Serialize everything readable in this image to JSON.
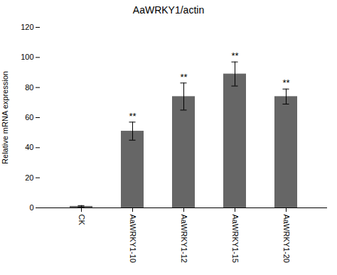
{
  "chart_data": {
    "type": "bar",
    "title": "AaWRKY1/actin",
    "ylabel": "Relative mRNA expression",
    "categories": [
      "CK",
      "AaWRKY1-10",
      "AaWRKY1-12",
      "AaWRKY1-15",
      "AaWRKY1-20"
    ],
    "values": [
      1.0,
      51.0,
      74.0,
      89.0,
      74.0
    ],
    "errors": [
      0.5,
      6.0,
      9.0,
      8.0,
      5.0
    ],
    "color": "#666666",
    "ylim": [
      0,
      120
    ],
    "yticks": [
      0,
      20,
      40,
      60,
      80,
      100,
      120
    ],
    "grid": false,
    "annotations": [
      {
        "x": "AaWRKY1-10",
        "text": "**"
      },
      {
        "x": "AaWRKY1-12",
        "text": "**"
      },
      {
        "x": "AaWRKY1-15",
        "text": "**"
      },
      {
        "x": "AaWRKY1-20",
        "text": "**"
      }
    ]
  }
}
